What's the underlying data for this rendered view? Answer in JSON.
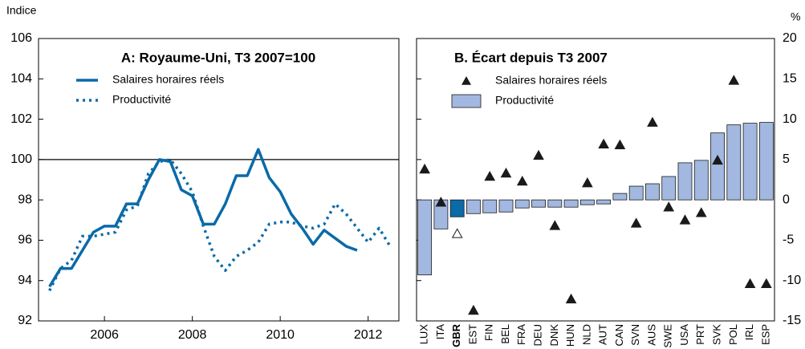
{
  "chart_data": [
    {
      "type": "line",
      "title": "A: Royaume-Uni, T3 2007=100",
      "ylabel": "Indice",
      "x": [
        2004.75,
        2005,
        2005.25,
        2005.5,
        2005.75,
        2006,
        2006.25,
        2006.5,
        2006.75,
        2007,
        2007.25,
        2007.5,
        2007.75,
        2008,
        2008.25,
        2008.5,
        2008.75,
        2009,
        2009.25,
        2009.5,
        2009.75,
        2010,
        2010.25,
        2010.5,
        2010.75,
        2011,
        2011.25,
        2011.5,
        2011.75,
        2012,
        2012.25,
        2012.5
      ],
      "xlim": [
        2004.5,
        2012.7
      ],
      "xticks": [
        2006,
        2008,
        2010,
        2012
      ],
      "ylim": [
        92,
        106
      ],
      "yticks": [
        92,
        94,
        96,
        98,
        100,
        102,
        104,
        106
      ],
      "reference_line": 100,
      "series": [
        {
          "name": "Salaires horaires réels",
          "color": "#0b6aa8",
          "style": "solid",
          "values": [
            93.7,
            94.6,
            94.6,
            95.5,
            96.4,
            96.7,
            96.7,
            97.8,
            97.8,
            99.0,
            100.0,
            99.9,
            98.5,
            98.2,
            96.8,
            96.8,
            97.8,
            99.2,
            99.2,
            100.5,
            99.1,
            98.4,
            97.3,
            96.6,
            95.8,
            96.5,
            96.1,
            95.7,
            95.5,
            null,
            null,
            null
          ]
        },
        {
          "name": "Productivité",
          "color": "#0b6aa8",
          "style": "dotted",
          "values": [
            93.5,
            94.6,
            95.0,
            96.2,
            96.2,
            96.3,
            96.4,
            97.5,
            97.7,
            99.3,
            99.9,
            100.0,
            99.3,
            98.4,
            96.7,
            95.2,
            94.5,
            95.2,
            95.5,
            95.9,
            96.8,
            96.9,
            96.9,
            96.7,
            96.6,
            96.8,
            97.8,
            97.3,
            96.6,
            95.9,
            96.6,
            95.7
          ]
        }
      ]
    },
    {
      "type": "bar",
      "title": "B. Écart depuis T3 2007",
      "ylabel": "%",
      "categories": [
        "LUX",
        "ITA",
        "GBR",
        "EST",
        "FIN",
        "BEL",
        "FRA",
        "DEU",
        "DNK",
        "HUN",
        "NLD",
        "AUT",
        "CAN",
        "SVN",
        "AUS",
        "SWE",
        "USA",
        "PRT",
        "SVK",
        "POL",
        "IRL",
        "ESP"
      ],
      "ylim": [
        -15,
        20
      ],
      "yticks": [
        -15,
        -10,
        -5,
        0,
        5,
        10,
        15,
        20
      ],
      "highlight": 2,
      "highlight_color": "#0b6aa8",
      "series": [
        {
          "name": "Salaires horaires réels",
          "type": "scatter",
          "marker": "triangle",
          "color": "#1a1a1a",
          "values": [
            3.8,
            -0.3,
            -4.2,
            -13.7,
            2.9,
            3.3,
            2.3,
            5.5,
            -3.2,
            -12.3,
            2.1,
            6.9,
            6.8,
            -2.9,
            9.6,
            -0.9,
            -2.5,
            -1.6,
            4.9,
            14.8,
            -10.4,
            -10.4
          ]
        },
        {
          "name": "Productivité",
          "type": "bar",
          "color": "#a3b8e0",
          "values": [
            -9.3,
            -3.6,
            -2.1,
            -1.7,
            -1.6,
            -1.5,
            -1.0,
            -0.9,
            -0.9,
            -0.9,
            -0.6,
            -0.5,
            0.8,
            1.7,
            2.0,
            2.9,
            4.6,
            4.9,
            8.3,
            9.3,
            9.5,
            9.6
          ]
        }
      ]
    }
  ]
}
